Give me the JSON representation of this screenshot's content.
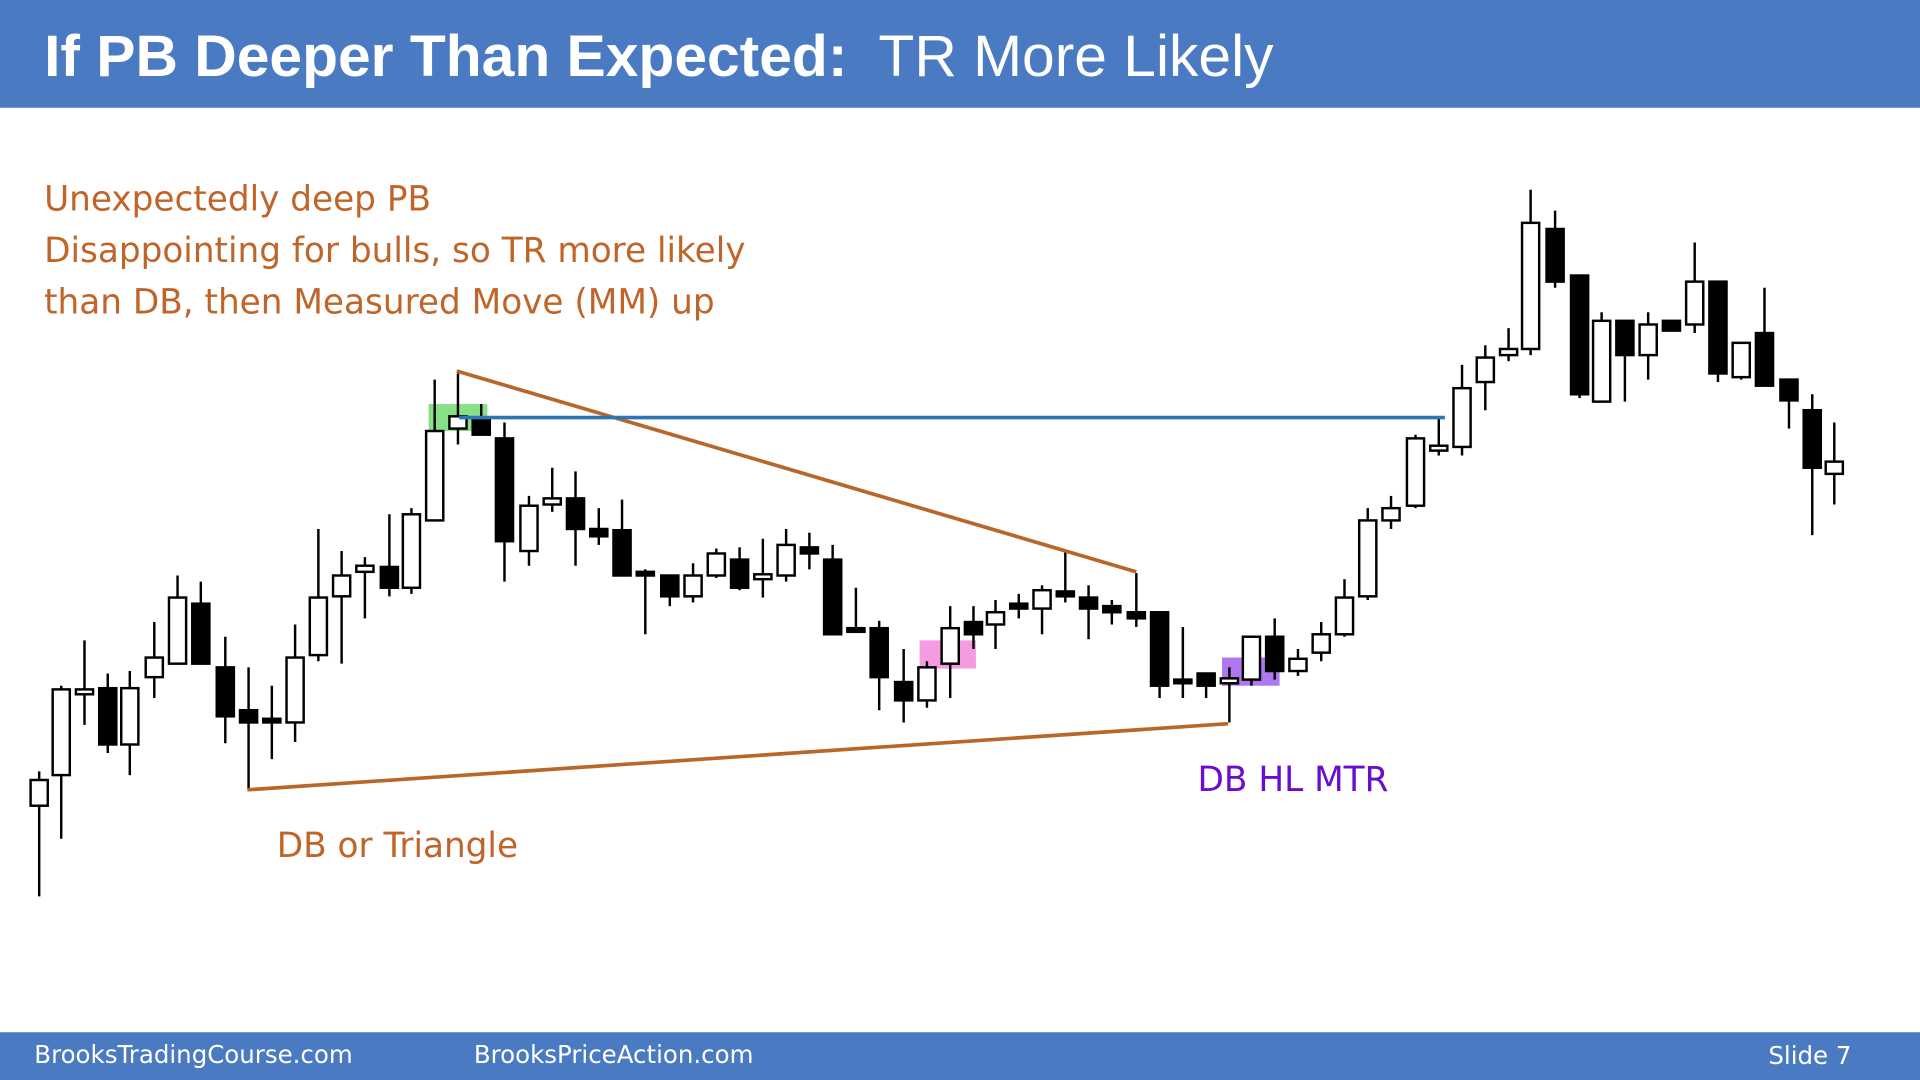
{
  "header": {
    "title_bold": "If PB Deeper Than Expected:",
    "title_rest": "TR More Likely"
  },
  "annotation": {
    "lines": [
      "Unexpectedly deep PB",
      "Disappointing for bulls, so TR more likely",
      "than DB, then Measured Move (MM) up"
    ]
  },
  "labels": {
    "triangle": "DB or Triangle",
    "mtr": "DB HL MTR"
  },
  "footer": {
    "left": "BrooksTradingCourse.com",
    "center": "BrooksPriceAction.com",
    "slide": "Slide  7"
  }
}
